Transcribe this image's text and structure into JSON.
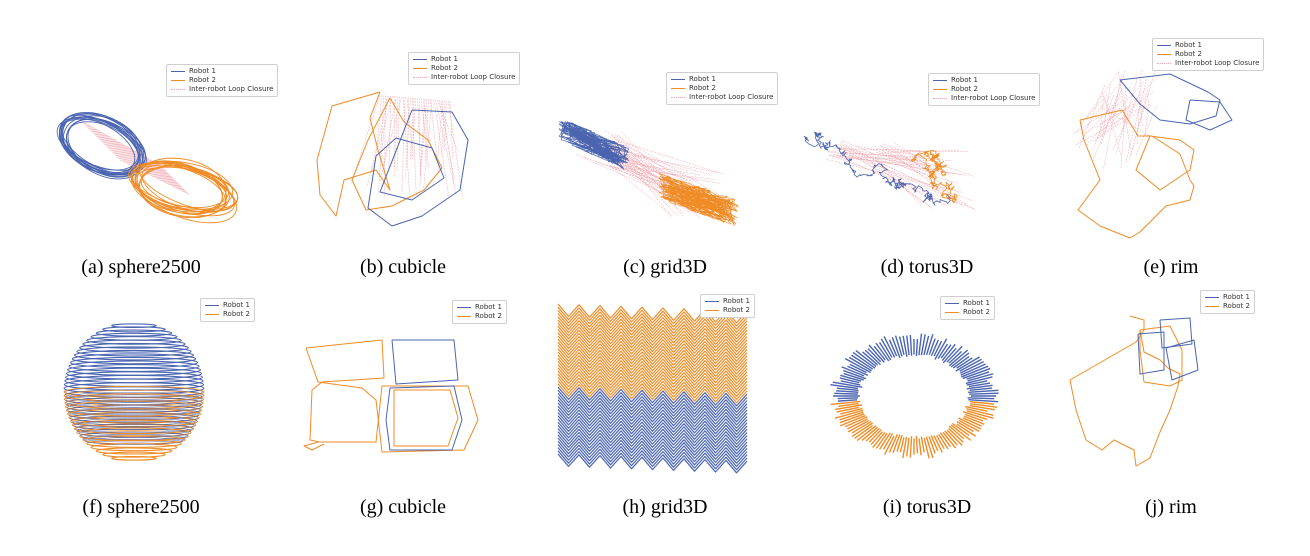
{
  "colors": {
    "robot1": "#4a64b0",
    "robot2": "#ef8c25",
    "loop": "#f2a6b0"
  },
  "legend_labels": {
    "robot1": "Robot 1",
    "robot2": "Robot 2",
    "loop": "Inter-robot Loop Closure"
  },
  "panels": [
    {
      "id": "a",
      "caption": "(a) sphere2500",
      "has_loop": true
    },
    {
      "id": "b",
      "caption": "(b) cubicle",
      "has_loop": true
    },
    {
      "id": "c",
      "caption": "(c) grid3D",
      "has_loop": true
    },
    {
      "id": "d",
      "caption": "(d) torus3D",
      "has_loop": true
    },
    {
      "id": "e",
      "caption": "(e) rim",
      "has_loop": true
    },
    {
      "id": "f",
      "caption": "(f) sphere2500",
      "has_loop": false
    },
    {
      "id": "g",
      "caption": "(g) cubicle",
      "has_loop": false
    },
    {
      "id": "h",
      "caption": "(h) grid3D",
      "has_loop": false
    },
    {
      "id": "i",
      "caption": "(i) torus3D",
      "has_loop": false
    },
    {
      "id": "j",
      "caption": "(j) rim",
      "has_loop": false
    }
  ]
}
